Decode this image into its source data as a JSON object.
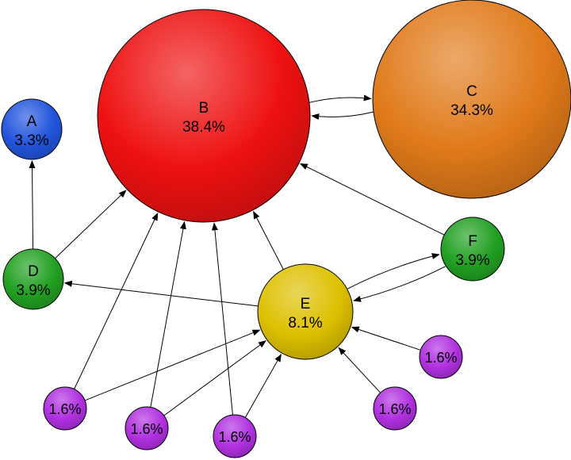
{
  "nodes": [
    {
      "id": "A",
      "label": "A",
      "value": "3.3%",
      "color": "#2255dd"
    },
    {
      "id": "B",
      "label": "B",
      "value": "38.4%",
      "color": "#ee1111"
    },
    {
      "id": "C",
      "label": "C",
      "value": "34.3%",
      "color": "#e07a1a"
    },
    {
      "id": "D",
      "label": "D",
      "value": "3.9%",
      "color": "#22a022"
    },
    {
      "id": "E",
      "label": "E",
      "value": "8.1%",
      "color": "#ddc000"
    },
    {
      "id": "F",
      "label": "F",
      "value": "3.9%",
      "color": "#22a022"
    },
    {
      "id": "P1",
      "label": "",
      "value": "1.6%",
      "color": "#b030e0"
    },
    {
      "id": "P2",
      "label": "",
      "value": "1.6%",
      "color": "#b030e0"
    },
    {
      "id": "P3",
      "label": "",
      "value": "1.6%",
      "color": "#b030e0"
    },
    {
      "id": "P4",
      "label": "",
      "value": "1.6%",
      "color": "#b030e0"
    },
    {
      "id": "P5",
      "label": "",
      "value": "1.6%",
      "color": "#b030e0"
    }
  ],
  "edges": [
    {
      "from": "D",
      "to": "A"
    },
    {
      "from": "D",
      "to": "B"
    },
    {
      "from": "B",
      "to": "C"
    },
    {
      "from": "C",
      "to": "B"
    },
    {
      "from": "F",
      "to": "B"
    },
    {
      "from": "E",
      "to": "B"
    },
    {
      "from": "E",
      "to": "D"
    },
    {
      "from": "E",
      "to": "F"
    },
    {
      "from": "F",
      "to": "E"
    },
    {
      "from": "P1",
      "to": "B"
    },
    {
      "from": "P1",
      "to": "E"
    },
    {
      "from": "P2",
      "to": "B"
    },
    {
      "from": "P2",
      "to": "E"
    },
    {
      "from": "P3",
      "to": "B"
    },
    {
      "from": "P3",
      "to": "E"
    },
    {
      "from": "P4",
      "to": "E"
    },
    {
      "from": "P5",
      "to": "E"
    }
  ]
}
